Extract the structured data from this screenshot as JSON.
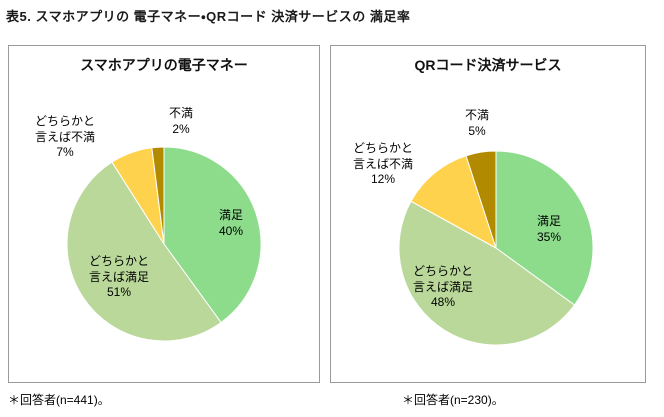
{
  "page": {
    "title": "表5. スマホアプリの 電子マネー・QRコード 決済サービスの 満足率"
  },
  "panels": [
    {
      "title": "スマホアプリの電子マネー",
      "footnote": "＊回答者(n=441)。"
    },
    {
      "title": "QRコード決済サービス",
      "footnote": "＊回答者(n=230)。"
    }
  ],
  "chart_data": [
    {
      "type": "pie",
      "title": "スマホアプリの電子マネー",
      "unit": "%",
      "n": 441,
      "start_angle": "top",
      "direction": "clockwise",
      "legend": "none",
      "slices": [
        {
          "label": "満足",
          "value": 40,
          "pct_text": "40%",
          "color": "#8cdc8c"
        },
        {
          "label": "どちらかと言えば満足",
          "value": 51,
          "pct_text": "51%",
          "color": "#b9d89a"
        },
        {
          "label": "どちらかと言えば不満",
          "value": 7,
          "pct_text": "7%",
          "color": "#ffd24d"
        },
        {
          "label": "不満",
          "value": 2,
          "pct_text": "2%",
          "color": "#b28a00"
        }
      ]
    },
    {
      "type": "pie",
      "title": "QRコード決済サービス",
      "unit": "%",
      "n": 230,
      "start_angle": "top",
      "direction": "clockwise",
      "legend": "none",
      "slices": [
        {
          "label": "満足",
          "value": 35,
          "pct_text": "35%",
          "color": "#8cdc8c"
        },
        {
          "label": "どちらかと言えば満足",
          "value": 48,
          "pct_text": "48%",
          "color": "#b9d89a"
        },
        {
          "label": "どちらかと言えば不満",
          "value": 12,
          "pct_text": "12%",
          "color": "#ffd24d"
        },
        {
          "label": "不満",
          "value": 5,
          "pct_text": "5%",
          "color": "#b28a00"
        }
      ]
    }
  ]
}
